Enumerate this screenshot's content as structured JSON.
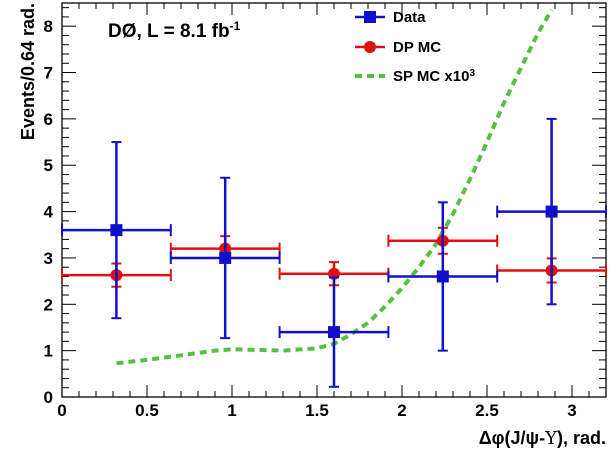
{
  "chart_data": {
    "type": "scatter",
    "annotation": {
      "main": "DØ, L = 8.1 fb",
      "sup": "-1"
    },
    "xlabel": {
      "pre": "Δφ(J/ψ-",
      "mid": "Υ",
      "post": "), rad."
    },
    "ylabel": "Events/0.64 rad.",
    "xlim": [
      0,
      3.2
    ],
    "ylim": [
      0,
      8.5
    ],
    "xticks": [
      0,
      0.5,
      1,
      1.5,
      2,
      2.5,
      3
    ],
    "xtick_labels": [
      "0",
      "0.5",
      "1",
      "1.5",
      "2",
      "2.5",
      "3"
    ],
    "yticks": [
      0,
      1,
      2,
      3,
      4,
      5,
      6,
      7,
      8
    ],
    "ytick_labels": [
      "0",
      "1",
      "2",
      "3",
      "4",
      "5",
      "6",
      "7",
      "8"
    ],
    "grid": false,
    "legend_position": "top-right",
    "colors": {
      "data": "#1010c8",
      "dp": "#e01010",
      "sp": "#55c040"
    },
    "series": [
      {
        "name": "Data",
        "kind": "points",
        "marker": "square",
        "points": [
          {
            "x": 0.32,
            "y": 3.6,
            "xerr": 0.32,
            "yerr_lo": 1.9,
            "yerr_hi": 1.9
          },
          {
            "x": 0.96,
            "y": 3.0,
            "xerr": 0.32,
            "yerr_lo": 1.73,
            "yerr_hi": 1.73
          },
          {
            "x": 1.6,
            "y": 1.4,
            "xerr": 0.32,
            "yerr_lo": 1.18,
            "yerr_hi": 1.18
          },
          {
            "x": 2.24,
            "y": 2.6,
            "xerr": 0.32,
            "yerr_lo": 1.6,
            "yerr_hi": 1.6
          },
          {
            "x": 2.88,
            "y": 4.0,
            "xerr": 0.32,
            "yerr_lo": 2.0,
            "yerr_hi": 2.0
          }
        ]
      },
      {
        "name": "DP MC",
        "kind": "points",
        "marker": "circle",
        "points": [
          {
            "x": 0.32,
            "y": 2.63,
            "xerr": 0.32,
            "yerr_lo": 0.25,
            "yerr_hi": 0.25
          },
          {
            "x": 0.96,
            "y": 3.2,
            "xerr": 0.32,
            "yerr_lo": 0.27,
            "yerr_hi": 0.27
          },
          {
            "x": 1.6,
            "y": 2.66,
            "xerr": 0.32,
            "yerr_lo": 0.25,
            "yerr_hi": 0.25
          },
          {
            "x": 2.24,
            "y": 3.37,
            "xerr": 0.32,
            "yerr_lo": 0.28,
            "yerr_hi": 0.28
          },
          {
            "x": 2.88,
            "y": 2.73,
            "xerr": 0.32,
            "yerr_lo": 0.26,
            "yerr_hi": 0.26
          }
        ]
      },
      {
        "name": "SP MC x10",
        "name_sup": "3",
        "kind": "line",
        "style": "dashed",
        "x": [
          0.32,
          0.5,
          0.7,
          0.9,
          1.0,
          1.1,
          1.3,
          1.5,
          1.6,
          1.7,
          1.8,
          1.9,
          2.0,
          2.1,
          2.2,
          2.3,
          2.4,
          2.5,
          2.6,
          2.7,
          2.8,
          2.88
        ],
        "y": [
          0.73,
          0.8,
          0.9,
          1.0,
          1.03,
          1.02,
          1.0,
          1.05,
          1.15,
          1.35,
          1.6,
          1.95,
          2.35,
          2.8,
          3.3,
          3.95,
          4.7,
          5.5,
          6.35,
          7.1,
          7.85,
          8.35
        ]
      }
    ]
  }
}
